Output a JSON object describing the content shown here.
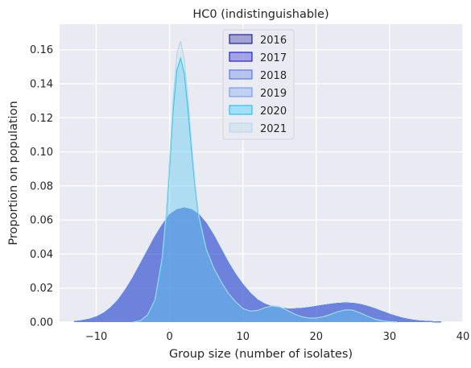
{
  "chart_data": {
    "type": "area",
    "title": "HC0 (indistinguishable)",
    "xlabel": "Group size (number of isolates)",
    "ylabel": "Proportion on population",
    "xlim": [
      -15,
      40
    ],
    "ylim": [
      0,
      0.175
    ],
    "xticks": [
      -10,
      0,
      10,
      20,
      30,
      40
    ],
    "yticks": [
      0.0,
      0.02,
      0.04,
      0.06,
      0.08,
      0.1,
      0.12,
      0.14,
      0.16
    ],
    "ytick_labels": [
      "0.00",
      "0.02",
      "0.04",
      "0.06",
      "0.08",
      "0.10",
      "0.12",
      "0.14",
      "0.16"
    ],
    "grid": true,
    "legend_position": "top-center",
    "series": [
      {
        "name": "2016",
        "color": "#00008b",
        "x": [
          -13,
          -12,
          -11,
          -10,
          -9,
          -8,
          -7,
          -6,
          -5,
          -4,
          -3,
          -2,
          -1,
          0,
          1,
          2,
          3,
          4,
          5,
          6,
          7,
          8,
          9,
          10,
          11,
          12,
          13,
          14,
          15,
          16,
          17,
          18,
          19,
          20,
          21,
          22,
          23,
          24,
          25,
          26,
          27,
          28,
          29,
          30,
          31,
          32,
          33,
          34,
          35,
          36,
          37
        ],
        "values": [
          0.0003,
          0.0008,
          0.0016,
          0.003,
          0.0052,
          0.0085,
          0.013,
          0.019,
          0.026,
          0.034,
          0.042,
          0.05,
          0.057,
          0.063,
          0.066,
          0.067,
          0.066,
          0.063,
          0.058,
          0.051,
          0.043,
          0.035,
          0.028,
          0.022,
          0.017,
          0.013,
          0.0105,
          0.009,
          0.0082,
          0.0078,
          0.0078,
          0.008,
          0.0085,
          0.0092,
          0.0099,
          0.0105,
          0.011,
          0.0112,
          0.011,
          0.0103,
          0.0092,
          0.0078,
          0.0062,
          0.0046,
          0.0032,
          0.0021,
          0.0013,
          0.0007,
          0.0004,
          0.0002,
          0.0001
        ]
      },
      {
        "name": "2017",
        "color": "#0000cd",
        "x": [
          -13,
          -12,
          -11,
          -10,
          -9,
          -8,
          -7,
          -6,
          -5,
          -4,
          -3,
          -2,
          -1,
          0,
          1,
          2,
          3,
          4,
          5,
          6,
          7,
          8,
          9,
          10,
          11,
          12,
          13,
          14,
          15,
          16,
          17,
          18,
          19,
          20,
          21,
          22,
          23,
          24,
          25,
          26,
          27,
          28,
          29,
          30,
          31,
          32,
          33,
          34,
          35,
          36,
          37
        ],
        "values": [
          0.0003,
          0.0008,
          0.0016,
          0.003,
          0.0052,
          0.0085,
          0.013,
          0.019,
          0.026,
          0.034,
          0.042,
          0.05,
          0.057,
          0.063,
          0.066,
          0.067,
          0.066,
          0.063,
          0.058,
          0.051,
          0.043,
          0.035,
          0.028,
          0.022,
          0.017,
          0.013,
          0.0105,
          0.009,
          0.0082,
          0.0078,
          0.0078,
          0.008,
          0.0085,
          0.0092,
          0.0099,
          0.0105,
          0.011,
          0.0112,
          0.011,
          0.0103,
          0.0092,
          0.0078,
          0.0062,
          0.0046,
          0.0032,
          0.0021,
          0.0013,
          0.0007,
          0.0004,
          0.0002,
          0.0001
        ]
      },
      {
        "name": "2018",
        "color": "#4169e1",
        "x": [
          -13,
          -12,
          -11,
          -10,
          -9,
          -8,
          -7,
          -6,
          -5,
          -4,
          -3,
          -2,
          -1,
          0,
          1,
          2,
          3,
          4,
          5,
          6,
          7,
          8,
          9,
          10,
          11,
          12,
          13,
          14,
          15,
          16,
          17,
          18,
          19,
          20,
          21,
          22,
          23,
          24,
          25,
          26,
          27,
          28,
          29,
          30,
          31,
          32,
          33,
          34,
          35,
          36,
          37
        ],
        "values": [
          0.0003,
          0.0008,
          0.0016,
          0.003,
          0.0052,
          0.0085,
          0.013,
          0.019,
          0.026,
          0.034,
          0.042,
          0.05,
          0.057,
          0.063,
          0.066,
          0.067,
          0.066,
          0.063,
          0.058,
          0.051,
          0.043,
          0.035,
          0.028,
          0.022,
          0.017,
          0.013,
          0.0105,
          0.009,
          0.0082,
          0.0078,
          0.0078,
          0.008,
          0.0085,
          0.0092,
          0.0099,
          0.0105,
          0.011,
          0.0112,
          0.011,
          0.0103,
          0.0092,
          0.0078,
          0.0062,
          0.0046,
          0.0032,
          0.0021,
          0.0013,
          0.0007,
          0.0004,
          0.0002,
          0.0001
        ]
      },
      {
        "name": "2019",
        "color": "#6495ed",
        "x": [
          -13,
          -12,
          -11,
          -10,
          -9,
          -8,
          -7,
          -6,
          -5,
          -4,
          -3,
          -2,
          -1,
          0,
          1,
          2,
          3,
          4,
          5,
          6,
          7,
          8,
          9,
          10,
          11,
          12,
          13,
          14,
          15,
          16,
          17,
          18,
          19,
          20,
          21,
          22,
          23,
          24,
          25,
          26,
          27,
          28,
          29,
          30,
          31,
          32,
          33,
          34,
          35,
          36,
          37
        ],
        "values": [
          0.0003,
          0.0008,
          0.0016,
          0.003,
          0.0052,
          0.0085,
          0.013,
          0.019,
          0.026,
          0.034,
          0.042,
          0.05,
          0.057,
          0.063,
          0.066,
          0.067,
          0.066,
          0.063,
          0.058,
          0.051,
          0.043,
          0.035,
          0.028,
          0.022,
          0.017,
          0.013,
          0.0105,
          0.009,
          0.0082,
          0.0078,
          0.0078,
          0.008,
          0.0085,
          0.0092,
          0.0099,
          0.0105,
          0.011,
          0.0112,
          0.011,
          0.0103,
          0.0092,
          0.0078,
          0.0062,
          0.0046,
          0.0032,
          0.0021,
          0.0013,
          0.0007,
          0.0004,
          0.0002,
          0.0001
        ]
      },
      {
        "name": "2020",
        "color": "#00bfff",
        "x": [
          -5,
          -4,
          -3,
          -2,
          -1,
          -0.5,
          0,
          0.5,
          1,
          1.5,
          2,
          2.5,
          3,
          3.5,
          4,
          5,
          6,
          7,
          8,
          9,
          10,
          11,
          12,
          13,
          14,
          15,
          16,
          17,
          18,
          19,
          20,
          21,
          22,
          23,
          24,
          25,
          26,
          27,
          28,
          29,
          30,
          31
        ],
        "values": [
          0.0,
          0.0008,
          0.004,
          0.012,
          0.035,
          0.058,
          0.09,
          0.125,
          0.148,
          0.155,
          0.146,
          0.125,
          0.1,
          0.078,
          0.06,
          0.042,
          0.032,
          0.024,
          0.017,
          0.012,
          0.008,
          0.0065,
          0.0068,
          0.0085,
          0.0095,
          0.009,
          0.007,
          0.0048,
          0.0032,
          0.0024,
          0.0024,
          0.0032,
          0.0046,
          0.0062,
          0.0072,
          0.007,
          0.0054,
          0.0035,
          0.0018,
          0.0008,
          0.0003,
          0.0001
        ]
      },
      {
        "name": "2021",
        "color": "#add8e6",
        "x": [
          -5,
          -4,
          -3,
          -2,
          -1,
          -0.5,
          0,
          0.5,
          1,
          1.5,
          2,
          2.5,
          3,
          3.5,
          4,
          5,
          6,
          7,
          8,
          9,
          10,
          11,
          12,
          13,
          14,
          15,
          16,
          17,
          18,
          19,
          20,
          21,
          22,
          23,
          24,
          25,
          26,
          27,
          28,
          29,
          30,
          31
        ],
        "values": [
          0.0,
          0.0008,
          0.0042,
          0.013,
          0.038,
          0.062,
          0.095,
          0.132,
          0.158,
          0.165,
          0.154,
          0.132,
          0.105,
          0.081,
          0.062,
          0.043,
          0.032,
          0.024,
          0.017,
          0.012,
          0.008,
          0.0065,
          0.0068,
          0.0085,
          0.0095,
          0.009,
          0.007,
          0.0048,
          0.0032,
          0.0024,
          0.0024,
          0.0032,
          0.0046,
          0.0062,
          0.0072,
          0.007,
          0.0054,
          0.0035,
          0.0018,
          0.0008,
          0.0003,
          0.0001
        ]
      }
    ]
  }
}
